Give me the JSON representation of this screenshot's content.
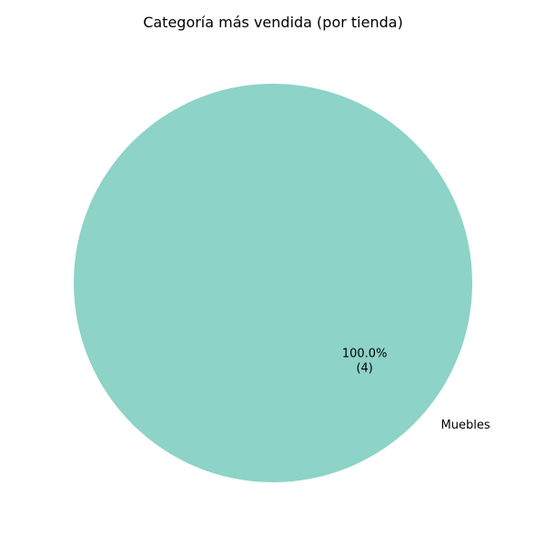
{
  "chart_data": {
    "type": "pie",
    "title": "Categoría más vendida (por tienda)",
    "categories": [
      "Muebles"
    ],
    "values": [
      4
    ],
    "percent_labels": [
      "100.0%"
    ],
    "count_labels": [
      "(4)"
    ],
    "colors": [
      "#8dd3c7"
    ],
    "legend": "none",
    "grid": false
  }
}
